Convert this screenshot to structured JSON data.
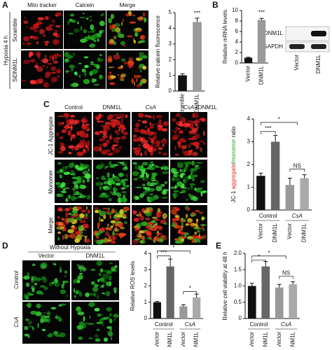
{
  "figure": {
    "panel_letters": [
      "A",
      "B",
      "C",
      "D",
      "E"
    ],
    "a": {
      "columns": [
        "Mito tracker",
        "Calcein",
        "Merge"
      ],
      "rows": [
        "Scramble",
        "SiDNM1L"
      ],
      "side": "Hypoxia 4 h"
    },
    "b": {
      "blot_rows": [
        "DNM1L",
        "GAPDH"
      ],
      "lanes": [
        "Vector",
        "DNM1L"
      ]
    },
    "c": {
      "columns": [
        "Control",
        "DNM1L",
        "CsA",
        "+DNM1L"
      ],
      "rows": [
        "JC-1 Aggregate",
        "Monomer",
        "Merge"
      ]
    },
    "d": {
      "header": "Without Hypoxia",
      "columns": [
        "Vector",
        "DNM1L"
      ],
      "rows": [
        "Control",
        "CsA"
      ]
    }
  },
  "chart_data": [
    {
      "type": "bar",
      "ylabel": "Relative calcein fluorescence",
      "categories": [
        "Scramble",
        "siDNM1L"
      ],
      "values": [
        1.0,
        4.4
      ],
      "errors": [
        0.1,
        0.25
      ],
      "colors": [
        "#111111",
        "#999999"
      ],
      "ylim": [
        0,
        5
      ],
      "yticks": [
        0,
        1,
        2,
        3,
        4,
        5
      ],
      "annotations": [
        "***"
      ]
    },
    {
      "type": "bar",
      "ylabel": "Relative mRNA levels",
      "categories": [
        "Vector",
        "DNM1L"
      ],
      "values": [
        1.0,
        8.2
      ],
      "errors": [
        0.1,
        0.3
      ],
      "colors": [
        "#111111",
        "#999999"
      ],
      "ylim": [
        0,
        10
      ],
      "yticks": [
        0,
        2,
        4,
        6,
        8,
        10
      ],
      "annotations": [
        "***"
      ]
    },
    {
      "type": "bar",
      "ylabel_parts": [
        "JC-1 ",
        "aggregate",
        "/",
        "monomer",
        " ratio"
      ],
      "ylabel_colors": [
        "#111111",
        "#e02020",
        "#111111",
        "#20a020",
        "#111111"
      ],
      "categories": [
        "Vector",
        "DNM1L",
        "Vector",
        "DNM1L"
      ],
      "group_labels": [
        "Control",
        "CsA"
      ],
      "values": [
        1.5,
        3.0,
        1.1,
        1.4
      ],
      "errors": [
        0.12,
        0.28,
        0.3,
        0.15
      ],
      "colors": [
        "#111111",
        "#666666",
        "#999999",
        "#aaaaaa"
      ],
      "ylim": [
        0,
        4
      ],
      "yticks": [
        0,
        1,
        2,
        3,
        4
      ],
      "annotations": [
        "***",
        "*",
        "NS"
      ]
    },
    {
      "type": "bar",
      "ylabel": "Relative ROS levels",
      "categories": [
        "Vector",
        "DNM1L",
        "Vector",
        "DNM1L"
      ],
      "group_labels": [
        "Control",
        "CsA"
      ],
      "values": [
        1.0,
        3.2,
        0.75,
        1.3
      ],
      "errors": [
        0.05,
        0.45,
        0.1,
        0.2
      ],
      "colors": [
        "#111111",
        "#666666",
        "#999999",
        "#aaaaaa"
      ],
      "ylim": [
        0,
        4
      ],
      "yticks": [
        0,
        1,
        2,
        3,
        4
      ],
      "annotations": [
        "***",
        "*",
        "*"
      ]
    },
    {
      "type": "bar",
      "ylabel": "Relative cell viability at 48 h",
      "categories": [
        "Vector",
        "DNM1L",
        "Vector",
        "DNM1L"
      ],
      "group_labels": [
        "Control",
        "CsA"
      ],
      "values": [
        1.0,
        1.6,
        0.95,
        1.05
      ],
      "errors": [
        0.08,
        0.15,
        0.1,
        0.08
      ],
      "colors": [
        "#111111",
        "#666666",
        "#999999",
        "#aaaaaa"
      ],
      "ylim": [
        0,
        2
      ],
      "yticks": [
        0,
        {
          "value": 0.5,
          "label": "0.5"
        },
        {
          "value": 1,
          "label": "1.0"
        },
        {
          "value": 1.5,
          "label": "1.5"
        },
        {
          "value": 2,
          "label": "2.0"
        }
      ],
      "annotations": [
        "*",
        "*",
        "NS"
      ]
    }
  ]
}
